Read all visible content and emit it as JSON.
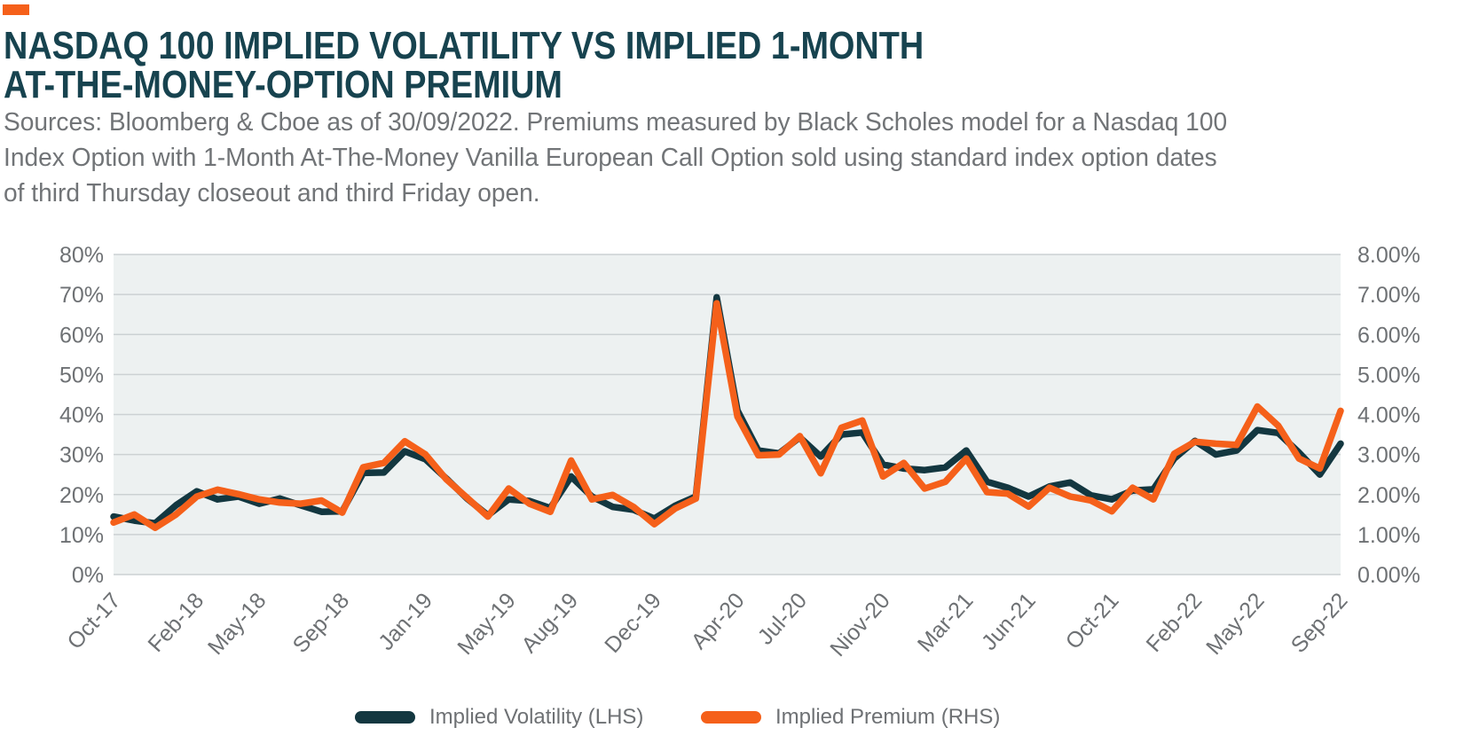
{
  "header": {
    "brand_color": "#f5601a",
    "title_line1": "NASDAQ 100 IMPLIED VOLATILITY VS IMPLIED 1-MONTH",
    "title_line2": "AT-THE-MONEY-OPTION PREMIUM",
    "source_lines": [
      "Sources: Bloomberg & Cboe as of 30/09/2022. Premiums measured by Black Scholes model for a Nasdaq 100",
      "Index Option with 1-Month At-The-Money Vanilla European Call Option sold using standard index option dates",
      "of third Thursday closeout and third Friday open."
    ]
  },
  "legend": {
    "items": [
      {
        "label": "Implied Volatility (LHS)",
        "color": "#133740"
      },
      {
        "label": "Implied Premium (RHS)",
        "color": "#f5601a"
      }
    ]
  },
  "chart_data": {
    "type": "line",
    "title": "NASDAQ 100 Implied Volatility vs Implied 1-Month At-The-Money-Option Premium",
    "plot_bg": "#edf1f1",
    "grid": true,
    "grid_color": "#ccd1d3",
    "legend_position": "bottom",
    "x": [
      "Oct-17",
      "Nov-17",
      "Dec-17",
      "Jan-18",
      "Feb-18",
      "Mar-18",
      "Apr-18",
      "May-18",
      "Jun-18",
      "Jul-18",
      "Aug-18",
      "Sep-18",
      "Oct-18",
      "Nov-18",
      "Dec-18",
      "Jan-19",
      "Feb-19",
      "Mar-19",
      "Apr-19",
      "May-19",
      "Jun-19",
      "Jul-19",
      "Aug-19",
      "Sep-19",
      "Oct-19",
      "Nov-19",
      "Dec-19",
      "Jan-20",
      "Feb-20",
      "Mar-20",
      "Apr-20",
      "May-20",
      "Jun-20",
      "Jul-20",
      "Aug-20",
      "Sep-20",
      "Oct-20",
      "Nov-20",
      "Dec-20",
      "Jan-21",
      "Feb-21",
      "Mar-21",
      "Apr-21",
      "May-21",
      "Jun-21",
      "Jul-21",
      "Aug-21",
      "Sep-21",
      "Oct-21",
      "Nov-21",
      "Dec-21",
      "Jan-22",
      "Feb-22",
      "Mar-22",
      "Apr-22",
      "May-22",
      "Jun-22",
      "Jul-22",
      "Aug-22",
      "Sep-22"
    ],
    "x_tick_labels": [
      "Oct-17",
      "Feb-18",
      "May-18",
      "Sep-18",
      "Jan-19",
      "May-19",
      "Aug-19",
      "Dec-19",
      "Apr-20",
      "Jul-20",
      "Niov-20",
      "Mar-21",
      "Jun-21",
      "Oct-21",
      "Feb-22",
      "May-22",
      "Sep-22"
    ],
    "x_tick_indices": [
      0,
      4,
      7,
      11,
      15,
      19,
      22,
      26,
      30,
      33,
      37,
      41,
      44,
      48,
      52,
      55,
      59
    ],
    "left_axis": {
      "label": "Implied Volatility",
      "ticks": [
        "80%",
        "70%",
        "60%",
        "50%",
        "40%",
        "30%",
        "20%",
        "10%",
        "0%"
      ],
      "range": [
        0,
        80
      ]
    },
    "right_axis": {
      "label": "Implied Premium",
      "ticks": [
        "8.00%",
        "7.00%",
        "6.00%",
        "5.00%",
        "4.00%",
        "3.00%",
        "2.00%",
        "1.00%",
        "0.00%"
      ],
      "range": [
        0,
        8
      ]
    },
    "series": [
      {
        "name": "Implied Volatility (LHS)",
        "axis": "left",
        "color": "#133740",
        "values": [
          14.5,
          13.5,
          12.8,
          17.3,
          20.8,
          18.8,
          19.5,
          17.7,
          19.0,
          17.3,
          15.7,
          15.8,
          25.4,
          25.5,
          30.8,
          28.8,
          24.0,
          19.0,
          14.8,
          18.8,
          18.4,
          16.6,
          24.5,
          19.5,
          16.9,
          16.2,
          14.0,
          17.2,
          19.5,
          69.3,
          41.0,
          31.0,
          30.3,
          34.3,
          29.5,
          35.0,
          35.5,
          27.5,
          26.5,
          26.1,
          26.8,
          31.0,
          23.2,
          21.7,
          19.5,
          22.0,
          23.0,
          19.8,
          18.8,
          21.0,
          21.3,
          29.0,
          33.4,
          30.0,
          31.0,
          36.1,
          35.4,
          30.5,
          25.0,
          32.7
        ]
      },
      {
        "name": "Implied Premium (RHS)",
        "axis": "right",
        "color": "#f5601a",
        "values": [
          1.3,
          1.5,
          1.17,
          1.5,
          1.95,
          2.12,
          2.01,
          1.88,
          1.8,
          1.77,
          1.85,
          1.55,
          2.68,
          2.79,
          3.33,
          3.0,
          2.38,
          1.92,
          1.45,
          2.15,
          1.77,
          1.57,
          2.85,
          1.88,
          1.99,
          1.69,
          1.26,
          1.65,
          1.9,
          6.78,
          3.95,
          2.98,
          3.0,
          3.46,
          2.53,
          3.67,
          3.85,
          2.45,
          2.79,
          2.15,
          2.32,
          2.9,
          2.06,
          2.02,
          1.7,
          2.17,
          1.95,
          1.85,
          1.58,
          2.17,
          1.88,
          3.02,
          3.32,
          3.27,
          3.24,
          4.2,
          3.72,
          2.9,
          2.65,
          4.09
        ]
      }
    ]
  }
}
